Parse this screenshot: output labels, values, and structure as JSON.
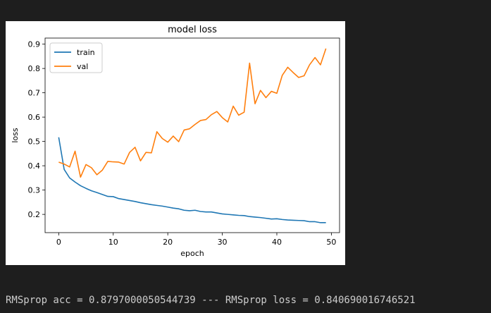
{
  "colors": {
    "background": "#1e1e1e",
    "plot_background": "#ffffff",
    "output_text": "#cccccc",
    "train": "#1f77b4",
    "val": "#ff7f0e"
  },
  "output": {
    "text": "RMSprop acc = 0.8797000050544739 --- RMSprop loss = 0.840690016746521"
  },
  "chart_data": {
    "type": "line",
    "title": "model loss",
    "xlabel": "epoch",
    "ylabel": "loss",
    "xlim": [
      -2.5,
      51.5
    ],
    "ylim": [
      0.125,
      0.925
    ],
    "xticks": [
      0,
      10,
      20,
      30,
      40,
      50
    ],
    "yticks": [
      0.2,
      0.3,
      0.4,
      0.5,
      0.6,
      0.7,
      0.8,
      0.9
    ],
    "grid": false,
    "legend_position": "upper-left",
    "x": [
      0,
      1,
      2,
      3,
      4,
      5,
      6,
      7,
      8,
      9,
      10,
      11,
      12,
      13,
      14,
      15,
      16,
      17,
      18,
      19,
      20,
      21,
      22,
      23,
      24,
      25,
      26,
      27,
      28,
      29,
      30,
      31,
      32,
      33,
      34,
      35,
      36,
      37,
      38,
      39,
      40,
      41,
      42,
      43,
      44,
      45,
      46,
      47,
      48,
      49
    ],
    "series": [
      {
        "name": "train",
        "color": "#1f77b4",
        "values": [
          0.517,
          0.385,
          0.35,
          0.333,
          0.318,
          0.307,
          0.297,
          0.29,
          0.282,
          0.274,
          0.273,
          0.265,
          0.261,
          0.257,
          0.253,
          0.248,
          0.244,
          0.24,
          0.237,
          0.234,
          0.23,
          0.226,
          0.223,
          0.217,
          0.215,
          0.217,
          0.212,
          0.21,
          0.21,
          0.206,
          0.202,
          0.2,
          0.198,
          0.196,
          0.195,
          0.191,
          0.189,
          0.187,
          0.184,
          0.181,
          0.182,
          0.179,
          0.177,
          0.176,
          0.175,
          0.174,
          0.17,
          0.17,
          0.166,
          0.166
        ]
      },
      {
        "name": "val",
        "color": "#ff7f0e",
        "values": [
          0.415,
          0.407,
          0.395,
          0.46,
          0.353,
          0.405,
          0.392,
          0.363,
          0.382,
          0.418,
          0.416,
          0.415,
          0.407,
          0.455,
          0.476,
          0.42,
          0.455,
          0.453,
          0.54,
          0.512,
          0.497,
          0.522,
          0.499,
          0.547,
          0.552,
          0.57,
          0.586,
          0.59,
          0.61,
          0.623,
          0.598,
          0.58,
          0.645,
          0.608,
          0.62,
          0.822,
          0.655,
          0.71,
          0.68,
          0.706,
          0.698,
          0.772,
          0.805,
          0.783,
          0.763,
          0.77,
          0.815,
          0.845,
          0.815,
          0.882
        ]
      }
    ]
  }
}
